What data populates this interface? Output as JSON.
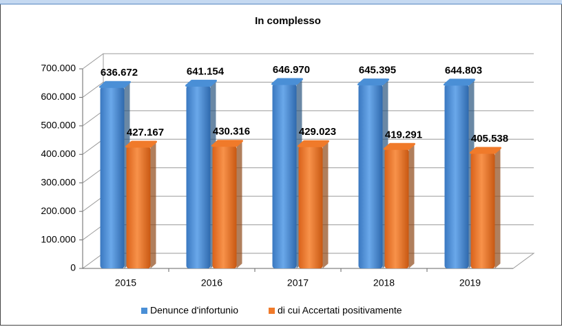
{
  "chart_data": {
    "type": "bar",
    "title": "In complesso",
    "categories": [
      "2015",
      "2016",
      "2017",
      "2018",
      "2019"
    ],
    "series": [
      {
        "name": "Denunce d'infortunio",
        "color": "#4a8fd6",
        "values": [
          636672,
          641154,
          646970,
          645395,
          644803
        ],
        "value_labels": [
          "636.672",
          "641.154",
          "646.970",
          "645.395",
          "644.803"
        ]
      },
      {
        "name": "di cui Accertati positivamente",
        "color": "#f07a2a",
        "values": [
          427167,
          430316,
          429023,
          419291,
          405538
        ],
        "value_labels": [
          "427.167",
          "430.316",
          "429.023",
          "419.291",
          "405.538"
        ]
      }
    ],
    "ylim": [
      0,
      700000
    ],
    "yticks": [
      0,
      {
        "value": 100000,
        "label": "100.000"
      },
      {
        "value": 200000,
        "label": "200.000"
      },
      {
        "value": 300000,
        "label": "300.000"
      },
      {
        "value": 400000,
        "label": "400.000"
      },
      {
        "value": 500000,
        "label": "500.000"
      },
      {
        "value": 600000,
        "label": "600.000"
      },
      {
        "value": 700000,
        "label": "700.000"
      }
    ],
    "grid": true,
    "legend": "bottom"
  }
}
